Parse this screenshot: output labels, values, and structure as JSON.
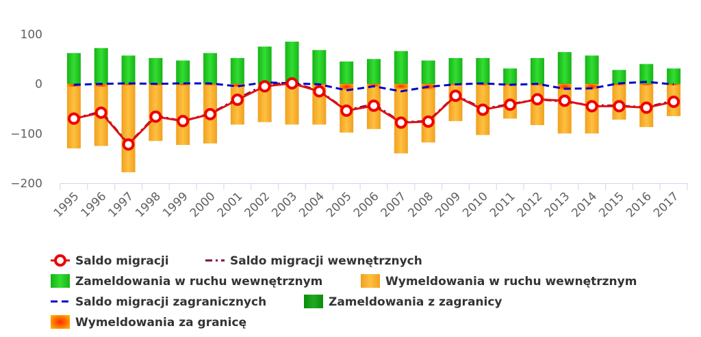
{
  "chart_data": {
    "type": "bar",
    "title": "",
    "xlabel": "",
    "ylabel": "",
    "ylim": [
      -200,
      100
    ],
    "y_ticks": [
      100,
      0,
      -100,
      -200
    ],
    "y_tick_labels": [
      "100",
      "0",
      "−100",
      "−200"
    ],
    "categories": [
      "1995",
      "1996",
      "1997",
      "1998",
      "1999",
      "2000",
      "2001",
      "2002",
      "2003",
      "2004",
      "2005",
      "2006",
      "2007",
      "2008",
      "2009",
      "2010",
      "2011",
      "2012",
      "2013",
      "2014",
      "2015",
      "2016",
      "2017"
    ],
    "series": [
      {
        "name": "Zameldowania w ruchu wewnętrznym",
        "kind": "bar",
        "color": "#22cc22",
        "values": [
          62,
          72,
          57,
          52,
          47,
          62,
          52,
          75,
          85,
          68,
          45,
          50,
          66,
          47,
          52,
          52,
          31,
          52,
          64,
          57,
          28,
          40,
          31
        ]
      },
      {
        "name": "Wymeldowania w ruchu wewnętrznym",
        "kind": "bar",
        "color": "#f5a623",
        "values": [
          -130,
          -125,
          -178,
          -115,
          -123,
          -120,
          -82,
          -77,
          -82,
          -82,
          -98,
          -91,
          -140,
          -118,
          -75,
          -103,
          -70,
          -83,
          -100,
          -100,
          -72,
          -87,
          -65
        ]
      },
      {
        "name": "Zameldowania z zagranicy",
        "kind": "bar",
        "color": "#119911",
        "values": [
          1,
          1,
          1,
          1,
          1,
          1,
          1,
          1,
          1,
          1,
          1,
          1,
          1,
          1,
          1,
          1,
          1,
          1,
          1,
          1,
          1,
          1,
          1
        ]
      },
      {
        "name": "Wymeldowania za granicę",
        "kind": "bar",
        "color": "#ff5a00",
        "values": [
          -6,
          -6,
          -3,
          -3,
          -3,
          -3,
          -6,
          -3,
          -2,
          -3,
          -12,
          -6,
          -10,
          -11,
          -3,
          -3,
          -3,
          -3,
          -12,
          -11,
          -3,
          -3,
          -3
        ]
      },
      {
        "name": "Saldo migracji",
        "kind": "line-marker",
        "color": "#dd1111",
        "values": [
          -70,
          -58,
          -122,
          -66,
          -75,
          -61,
          -32,
          -5,
          1,
          -15,
          -54,
          -44,
          -78,
          -76,
          -24,
          -52,
          -42,
          -31,
          -34,
          -45,
          -45,
          -48,
          -36
        ]
      },
      {
        "name": "Saldo migracji wewnętrznych",
        "kind": "dash-dot",
        "color": "#800040",
        "values": [
          -70,
          -56,
          -121,
          -64,
          -75,
          -60,
          -30,
          -2,
          3,
          -14,
          -53,
          -41,
          -77,
          -75,
          -23,
          -50,
          -41,
          -31,
          -36,
          -43,
          -44,
          -47,
          -34
        ]
      },
      {
        "name": "Saldo migracji zagranicznych",
        "kind": "dash",
        "color": "#0000cc",
        "values": [
          -2,
          0,
          1,
          0,
          1,
          1,
          -5,
          3,
          1,
          -1,
          -13,
          -5,
          -15,
          -6,
          -1,
          1,
          -2,
          0,
          -10,
          -9,
          1,
          4,
          -1
        ]
      }
    ],
    "legend": {
      "placement": "bottom-left",
      "items": [
        {
          "label": "Saldo migracji",
          "symbol": "line-marker",
          "color": "#dd1111"
        },
        {
          "label": "Saldo migracji wewnętrznych",
          "symbol": "dash-dot",
          "color": "#800040"
        },
        {
          "label": "Zameldowania w ruchu wewnętrznym",
          "symbol": "box",
          "color": "#22cc22"
        },
        {
          "label": "Wymeldowania w ruchu wewnętrznym",
          "symbol": "box",
          "color": "#f5a623"
        },
        {
          "label": "Saldo migracji zagranicznych",
          "symbol": "dash",
          "color": "#0000cc"
        },
        {
          "label": "Zameldowania z zagranicy",
          "symbol": "box",
          "color": "#119911"
        },
        {
          "label": "Wymeldowania za granicę",
          "symbol": "box-gradient",
          "color": "#ff5a00"
        }
      ]
    },
    "grid": false
  }
}
